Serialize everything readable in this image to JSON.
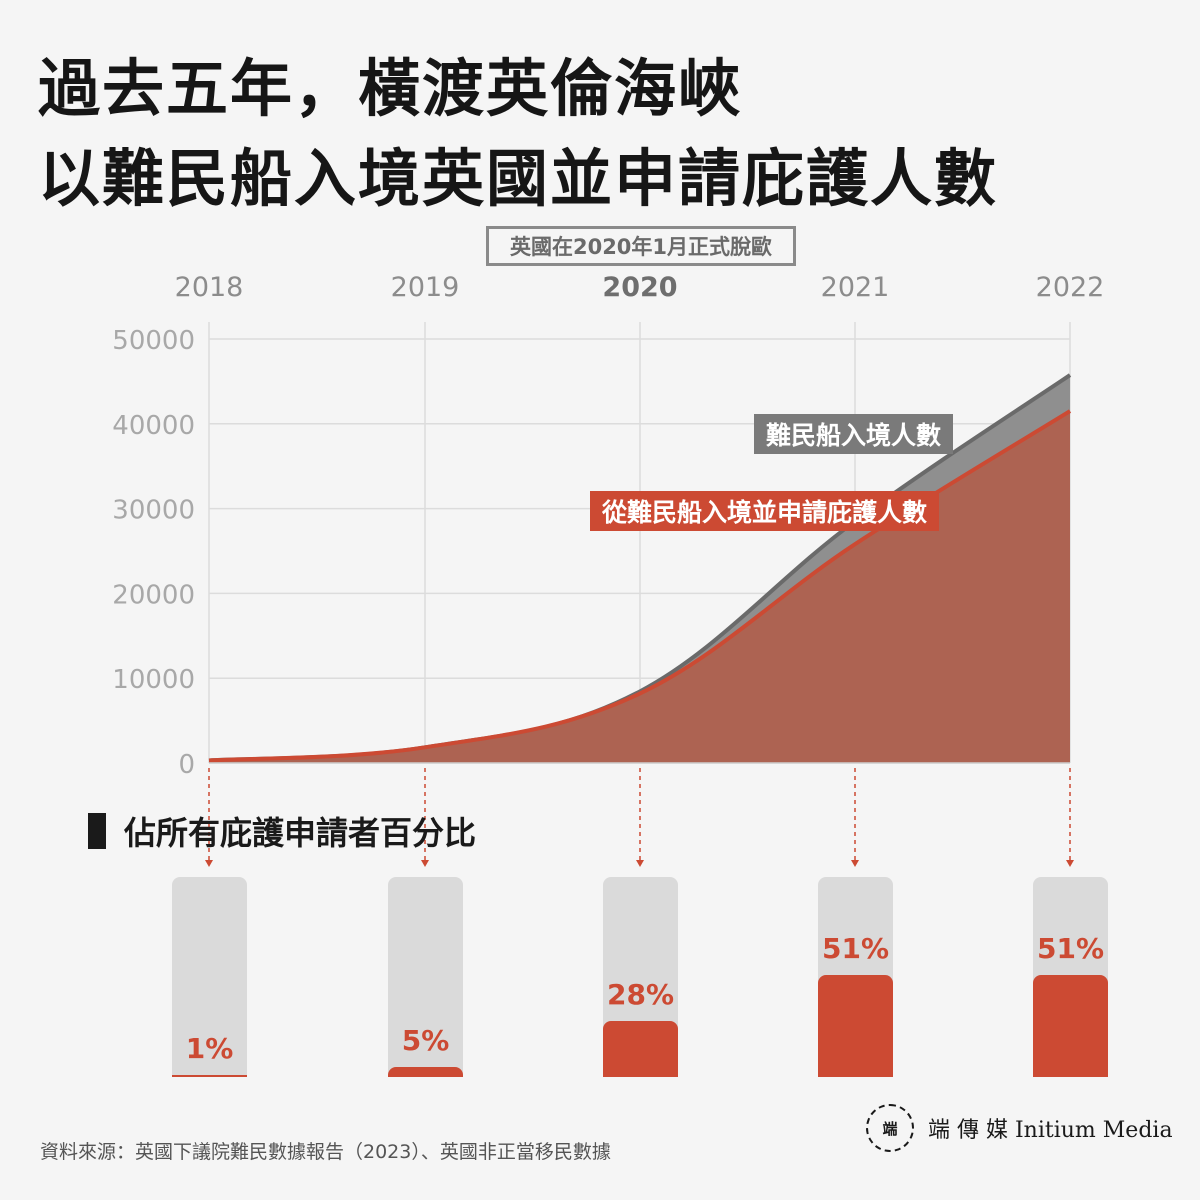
{
  "title": {
    "line1": "過去五年，橫渡英倫海峽",
    "line2": "以難民船入境英國並申請庇護人數"
  },
  "brexit_note": "英國在2020年1月正式脫歐",
  "chart_data": {
    "type": "area",
    "years": [
      "2018",
      "2019",
      "2020",
      "2021",
      "2022"
    ],
    "highlight_year": "2020",
    "ylim": [
      0,
      50000
    ],
    "y_ticks": [
      "0",
      "10000",
      "20000",
      "30000",
      "40000",
      "50000"
    ],
    "series": [
      {
        "name": "難民船入境人數",
        "color": "#7a7a7a",
        "values": [
          300,
          1850,
          8450,
          28500,
          45750
        ]
      },
      {
        "name": "從難民船入境並申請庇護人數",
        "color": "#cc4a33",
        "values": [
          300,
          1850,
          8200,
          25800,
          41500
        ]
      }
    ],
    "grid": true
  },
  "percent_section": {
    "title": "佔所有庇護申請者百分比",
    "bars": [
      {
        "year": "2018",
        "label": "1%",
        "value": 1
      },
      {
        "year": "2019",
        "label": "5%",
        "value": 5
      },
      {
        "year": "2020",
        "label": "28%",
        "value": 28
      },
      {
        "year": "2021",
        "label": "51%",
        "value": 51
      },
      {
        "year": "2022",
        "label": "51%",
        "value": 51
      }
    ]
  },
  "source": "資料來源：英國下議院難民數據報告（2023）、英國非正當移民數據",
  "logo": {
    "mark": "端",
    "text": "端 傳 媒  Initium Media"
  },
  "colors": {
    "accent": "#cc4a33",
    "gray_series": "#7a7a7a",
    "background": "#f5f5f5"
  }
}
